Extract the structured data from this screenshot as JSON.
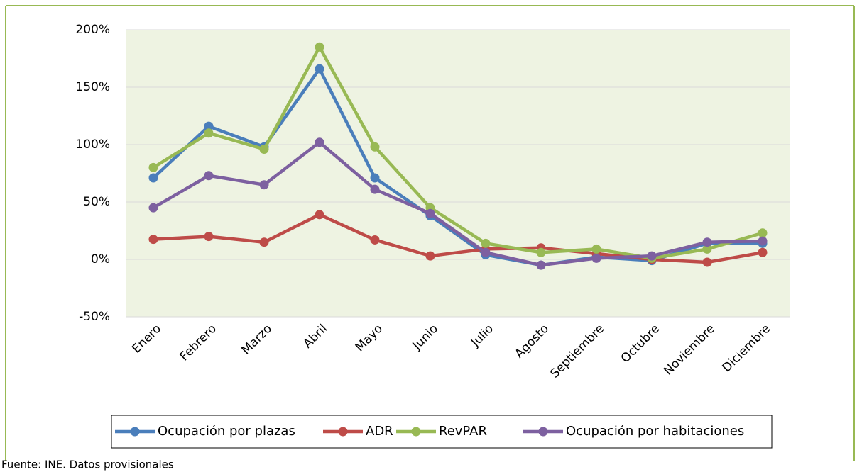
{
  "chart_data": {
    "type": "line",
    "categories": [
      "Enero",
      "Febrero",
      "Marzo",
      "Abril",
      "Mayo",
      "Junio",
      "Julio",
      "Agosto",
      "Septiembre",
      "Octubre",
      "Noviembre",
      "Diciembre"
    ],
    "series": [
      {
        "name": "Ocupación por plazas",
        "color": "#4a7ebb",
        "values": [
          71,
          116,
          98,
          166,
          71,
          38,
          4,
          -5,
          2,
          -1,
          14,
          14
        ]
      },
      {
        "name": "ADR",
        "color": "#be4b48",
        "values": [
          17.5,
          20,
          15,
          39,
          17,
          3,
          9,
          10,
          5,
          0,
          -2.5,
          6
        ]
      },
      {
        "name": "RevPAR",
        "color": "#98b954",
        "values": [
          80,
          110,
          96,
          185,
          98,
          45,
          14,
          6,
          9,
          1,
          9,
          23
        ]
      },
      {
        "name": "Ocupación por habitaciones",
        "color": "#7d60a0",
        "values": [
          45,
          73,
          65,
          102,
          61,
          40,
          6,
          -5,
          1,
          3,
          15,
          16
        ]
      }
    ],
    "ylim": [
      -50,
      200
    ],
    "yticks": [
      {
        "value": -50,
        "label": "-50%"
      },
      {
        "value": 0,
        "label": "0%"
      },
      {
        "value": 50,
        "label": "50%"
      },
      {
        "value": 100,
        "label": "100%"
      },
      {
        "value": 150,
        "label": "150%"
      },
      {
        "value": 200,
        "label": "200%"
      }
    ],
    "grid": true,
    "legend": "bottom",
    "source": "Fuente: INE. Datos provisionales"
  }
}
